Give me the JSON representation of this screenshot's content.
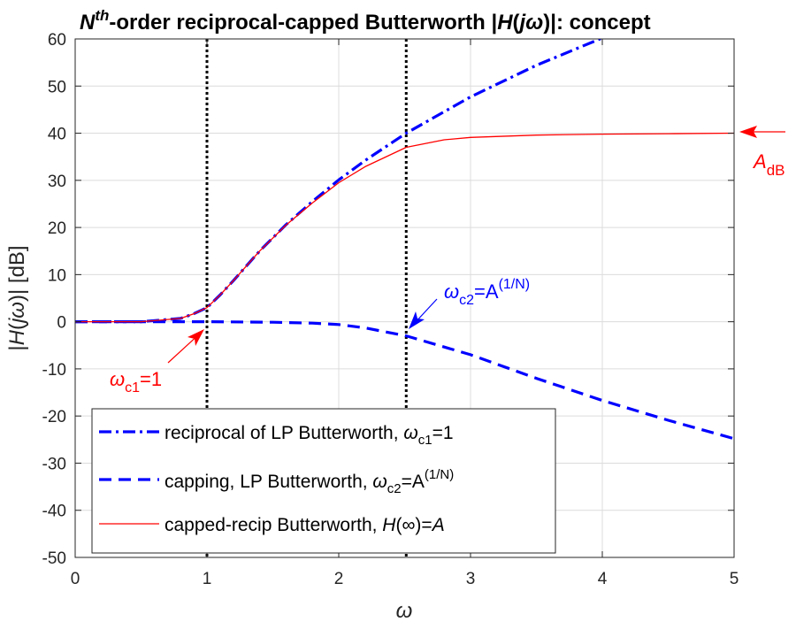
{
  "chart_data": {
    "type": "line",
    "title": {
      "N": "N",
      "sup": "th",
      "main": "-order reciprocal-capped Butterworth |",
      "H": "H",
      "paren_open": "(",
      "j": "j",
      "omega": "ω",
      "tail": ")|: concept"
    },
    "xlabel": "ω",
    "ylabel": {
      "pre": "|",
      "H": "H",
      "paren_open": "(",
      "j": "j",
      "omega": "ω",
      "post": ")| [dB]"
    },
    "xlim": [
      0,
      5
    ],
    "ylim": [
      -50,
      60
    ],
    "x_ticks": [
      "0",
      "1",
      "2",
      "3",
      "4",
      "5"
    ],
    "y_ticks": [
      "60",
      "50",
      "40",
      "30",
      "20",
      "10",
      "0",
      "-10",
      "-20",
      "-30",
      "-40",
      "-50"
    ],
    "grid": true,
    "vlines": [
      1,
      2.512
    ],
    "legend_position": "lower-left",
    "series": [
      {
        "name": "reciprocal of LP Butterworth, ωc1=1",
        "legend": {
          "text": "reciprocal of LP Butterworth, ",
          "omega": "ω",
          "sub": "c1",
          "tail": "=1"
        },
        "color": "#0000FF",
        "style": "dashdot",
        "x": [
          0,
          0.5,
          0.8,
          0.9,
          1.0,
          1.1,
          1.2,
          1.4,
          1.6,
          1.8,
          2.0,
          2.2,
          2.512,
          3.0,
          3.5,
          4.0
        ],
        "y": [
          0,
          0.0,
          0.7,
          1.7,
          3.0,
          5.7,
          8.7,
          15.0,
          20.6,
          25.5,
          30.1,
          34.2,
          40.0,
          47.7,
          54.4,
          60.2
        ]
      },
      {
        "name": "capping, LP Butterworth, ωc2=A(1/N)",
        "legend": {
          "text": "capping, LP Butterworth, ",
          "omega": "ω",
          "sub": "c2",
          "eq": "=A",
          "sup": "(1/N)"
        },
        "color": "#0000FF",
        "style": "dashed",
        "x": [
          0,
          1.0,
          1.5,
          1.8,
          2.0,
          2.2,
          2.512,
          3.0,
          3.5,
          4.0,
          4.5,
          5.0
        ],
        "y": [
          0,
          0.0,
          -0.1,
          -0.3,
          -0.6,
          -1.3,
          -3.0,
          -7.0,
          -12.0,
          -16.7,
          -20.9,
          -24.8
        ]
      },
      {
        "name": "capped-recip Butterworth, H(∞)=A",
        "legend": {
          "text": "capped-recip Butterworth,  ",
          "H": "H",
          "inf": "(∞)=",
          "A": "A"
        },
        "color": "#FF0000",
        "style": "solid",
        "x": [
          0,
          0.5,
          0.8,
          0.9,
          1.0,
          1.1,
          1.2,
          1.4,
          1.6,
          1.8,
          2.0,
          2.2,
          2.512,
          2.8,
          3.0,
          3.5,
          4.0,
          4.5,
          5.0
        ],
        "y": [
          0,
          0.0,
          0.7,
          1.7,
          3.0,
          5.7,
          8.7,
          15.0,
          20.5,
          25.2,
          29.5,
          32.9,
          37.0,
          38.6,
          39.1,
          39.6,
          39.8,
          39.9,
          40.0
        ]
      }
    ],
    "annotations": {
      "adb": {
        "A": "A",
        "sub": "dB",
        "color": "#FF0000",
        "y": 40
      },
      "wc1": {
        "omega": "ω",
        "sub": "c1",
        "eq": "=1",
        "color": "#FF0000",
        "x": 1,
        "y": 0
      },
      "wc2": {
        "omega": "ω",
        "sub": "c2",
        "eq": "=A",
        "sup": "(1/N)",
        "color": "#0000FF",
        "x": 2.512,
        "y": -3
      }
    }
  }
}
